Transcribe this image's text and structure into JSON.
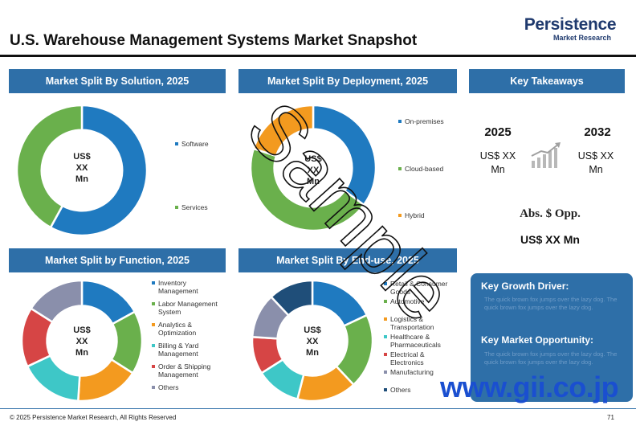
{
  "brand": {
    "name": "Persistence",
    "tagline": "Market Research"
  },
  "title": "U.S. Warehouse Management Systems Market Snapshot",
  "colors": {
    "header_bg": "#2e6fa8",
    "blue": "#1f7ac0",
    "green": "#6ab04c",
    "orange": "#f39a1f",
    "red": "#d64545",
    "teal": "#3ec7c7",
    "purple": "#8a8fab",
    "navy": "#1f4e79",
    "violet": "#7a62a8",
    "watermark": "#111111",
    "url": "#1a4fd0"
  },
  "chart_data": [
    {
      "type": "pie",
      "title": "Market Split By Solution, 2025",
      "center_label": [
        "US$",
        "XX",
        "Mn"
      ],
      "categories": [
        "Software",
        "Services"
      ],
      "values": [
        58,
        42
      ],
      "colors": [
        "#1f7ac0",
        "#6ab04c"
      ]
    },
    {
      "type": "pie",
      "title": "Market Split By Deployment, 2025",
      "center_label": [
        "US$",
        "XX",
        "Mn"
      ],
      "categories": [
        "On-premises",
        "Cloud-based",
        "Hybrid"
      ],
      "values": [
        35,
        45,
        20
      ],
      "colors": [
        "#1f7ac0",
        "#6ab04c",
        "#f39a1f"
      ]
    },
    {
      "type": "pie",
      "title": "Market Split by Function, 2025",
      "center_label": [
        "US$",
        "XX",
        "Mn"
      ],
      "categories": [
        "Inventory Management",
        "Labor Management System",
        "Analytics & Optimization",
        "Billing & Yard Management",
        "Order & Shipping Management",
        "Others"
      ],
      "values": [
        17,
        17,
        17,
        17,
        16,
        16
      ],
      "colors": [
        "#1f7ac0",
        "#6ab04c",
        "#f39a1f",
        "#3ec7c7",
        "#d64545",
        "#8a8fab"
      ]
    },
    {
      "type": "pie",
      "title": "Market Split By End-use, 2025",
      "center_label": [
        "US$",
        "XX",
        "Mn"
      ],
      "categories": [
        "Retail & Consumer Goods",
        "Automotive",
        "Logistics & Transportation",
        "Healthcare & Pharmaceuticals",
        "Electrical & Electronics",
        "Manufacturing",
        "Others"
      ],
      "values": [
        18,
        20,
        16,
        12,
        10,
        12,
        12
      ],
      "colors": [
        "#1f7ac0",
        "#6ab04c",
        "#f39a1f",
        "#3ec7c7",
        "#d64545",
        "#8a8fab",
        "#1f4e79"
      ]
    }
  ],
  "legends": {
    "solution": [
      "Software",
      "Services"
    ],
    "deployment": [
      "On-premises",
      "Cloud-based",
      "Hybrid"
    ],
    "function": [
      [
        "Inventory",
        "Management"
      ],
      [
        "Labor Management",
        "System"
      ],
      [
        "Analytics &",
        "Optimization"
      ],
      [
        "Billing & Yard",
        "Management"
      ],
      [
        "Order & Shipping",
        "Management"
      ],
      [
        "Others"
      ]
    ],
    "enduse": [
      [
        "Retail & Consumer",
        "Goods"
      ],
      [
        "Automotive"
      ],
      [
        "Logistics &",
        "Transportation"
      ],
      [
        "Healthcare &",
        "Pharmaceuticals"
      ],
      [
        "Electrical &",
        "Electronics"
      ],
      [
        "Manufacturing"
      ],
      [
        "Others"
      ]
    ]
  },
  "takeaways": {
    "header": "Key Takeaways",
    "year1": "2025",
    "value1": [
      "US$ XX",
      "Mn"
    ],
    "year2": "2032",
    "value2": [
      "US$ XX",
      "Mn"
    ],
    "icon": "growth-chart-icon",
    "abs_label": "Abs. $ Opp.",
    "abs_value": "US$ XX Mn"
  },
  "drivers": {
    "growth_title": "Key Growth Driver:",
    "growth_text": "The quick brown fox jumps over the lazy dog. The quick brown fox jumps over the lazy dog.",
    "opportunity_title": "Key Market Opportunity:",
    "opportunity_text": "The quick brown fox jumps over the lazy dog. The quick brown fox jumps over the lazy dog."
  },
  "watermark": "Sample",
  "url_watermark": "www.gii.co.jp",
  "footer": {
    "copyright": "© 2025 Persistence Market Research, All Rights Reserved",
    "page": "71"
  }
}
